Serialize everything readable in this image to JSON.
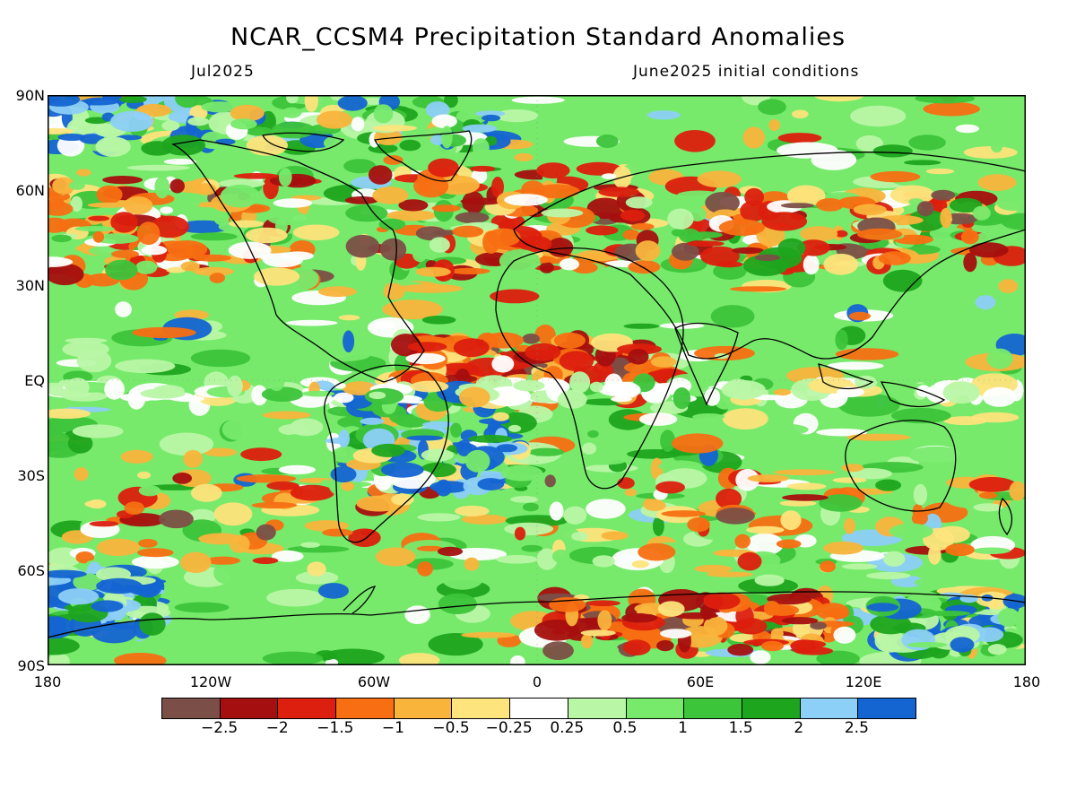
{
  "title": "NCAR_CCSM4 Precipitation Standard Anomalies",
  "subtitle_left": "Jul2025",
  "subtitle_right": "June2025 initial conditions",
  "lat_labels": [
    "90N",
    "60N",
    "30N",
    "EQ",
    "30S",
    "60S",
    "90S"
  ],
  "lon_labels": [
    "180",
    "120W",
    "60W",
    "0",
    "60E",
    "120E",
    "180"
  ],
  "colorbar": {
    "colors": [
      "#7b4f47",
      "#a50f0f",
      "#dc1f0e",
      "#f76f12",
      "#f9b43c",
      "#fde47c",
      "#ffffff",
      "#b9f7a6",
      "#77ea6c",
      "#3cc43a",
      "#1ea51e",
      "#8ccff7",
      "#1464d2"
    ],
    "labels": [
      "−2.5",
      "−2",
      "−1.5",
      "−1",
      "−0.5",
      "−0.25",
      "0.25",
      "0.5",
      "1",
      "1.5",
      "2",
      "2.5"
    ]
  }
}
